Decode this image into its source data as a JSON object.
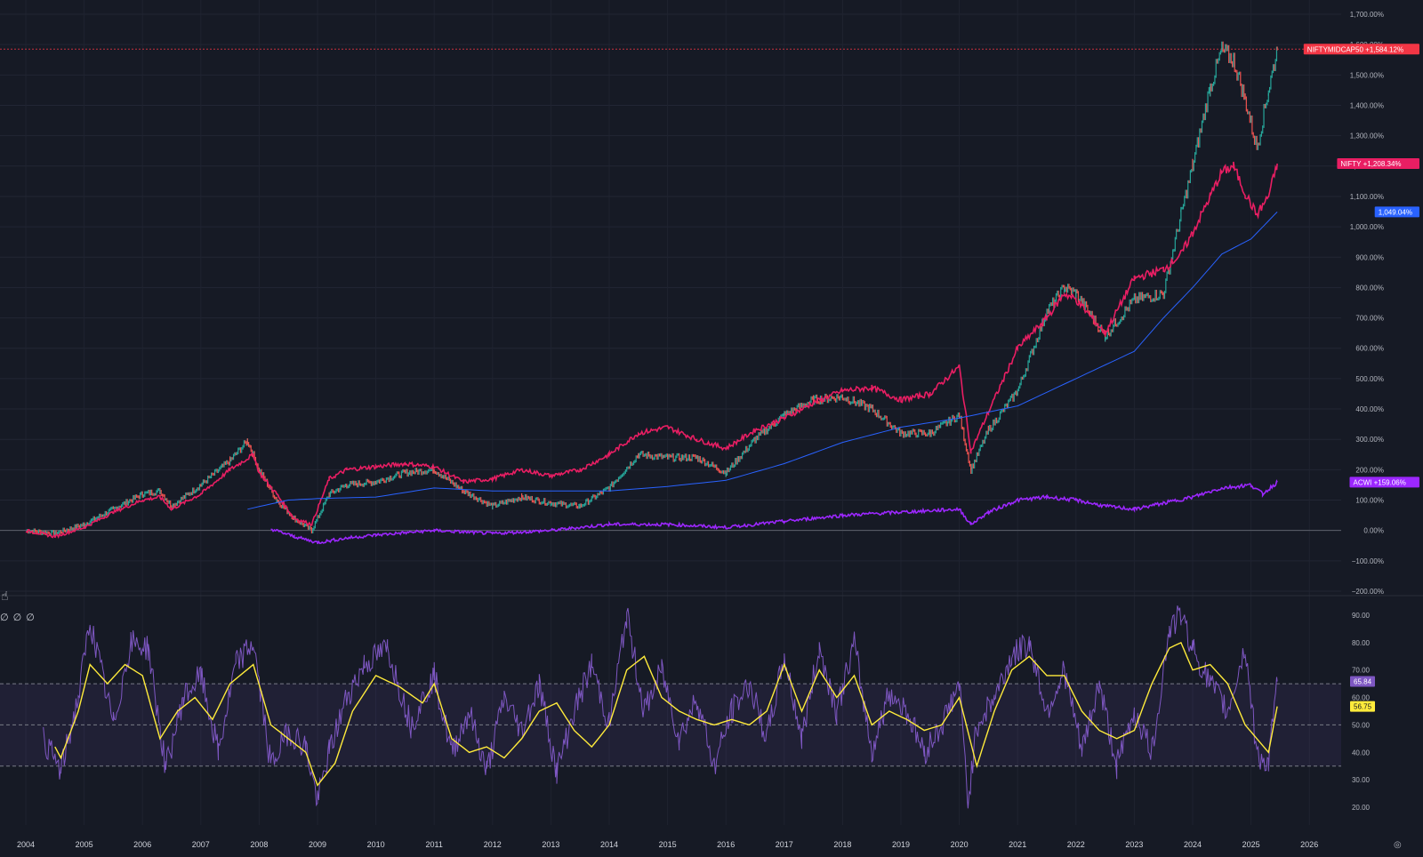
{
  "chart_data": [
    {
      "type": "line",
      "pane": "main",
      "y_unit": "%",
      "ylim": [
        -200,
        1700
      ],
      "y_ticks": [
        "1,700.00%",
        "1,600.00%",
        "1,500.00%",
        "1,400.00%",
        "1,300.00%",
        "1,200.00%",
        "1,100.00%",
        "1,000.00%",
        "900.00%",
        "800.00%",
        "700.00%",
        "600.00%",
        "500.00%",
        "400.00%",
        "300.00%",
        "200.00%",
        "100.00%",
        "0.00%",
        "−100.00%",
        "−200.00%"
      ],
      "y_tick_values": [
        1700,
        1600,
        1500,
        1400,
        1300,
        1200,
        1100,
        1000,
        900,
        800,
        700,
        600,
        500,
        400,
        300,
        200,
        100,
        0,
        -100,
        -200
      ],
      "x_ticks": [
        "2004",
        "2005",
        "2006",
        "2007",
        "2008",
        "2009",
        "2010",
        "2011",
        "2012",
        "2013",
        "2014",
        "2015",
        "2016",
        "2017",
        "2018",
        "2019",
        "2020",
        "2021",
        "2022",
        "2023",
        "2024",
        "2025",
        "2026"
      ],
      "grid": true,
      "series": [
        {
          "name": "NIFTYMIDCAP50",
          "style": "candles",
          "color": "#26a69a",
          "last_label": "+1,584.12%",
          "label_color": "#f23645",
          "x": [
            2004.0,
            2004.5,
            2005.0,
            2005.5,
            2006.0,
            2006.3,
            2006.5,
            2007.0,
            2007.5,
            2007.8,
            2008.0,
            2008.3,
            2008.6,
            2008.9,
            2009.2,
            2009.5,
            2010.0,
            2010.5,
            2011.0,
            2011.5,
            2012.0,
            2012.5,
            2013.0,
            2013.5,
            2014.0,
            2014.5,
            2015.0,
            2015.5,
            2016.0,
            2016.5,
            2017.0,
            2017.5,
            2018.0,
            2018.5,
            2019.0,
            2019.5,
            2020.0,
            2020.2,
            2020.5,
            2021.0,
            2021.5,
            2021.8,
            2022.0,
            2022.5,
            2023.0,
            2023.5,
            2023.8,
            2024.0,
            2024.3,
            2024.5,
            2024.7,
            2024.9,
            2025.1,
            2025.3,
            2025.45
          ],
          "values": [
            0,
            -10,
            20,
            70,
            120,
            130,
            80,
            150,
            230,
            295,
            200,
            100,
            40,
            0,
            120,
            150,
            160,
            190,
            200,
            130,
            80,
            110,
            90,
            80,
            140,
            250,
            240,
            240,
            190,
            300,
            380,
            430,
            440,
            400,
            320,
            320,
            380,
            200,
            330,
            460,
            720,
            800,
            780,
            640,
            760,
            780,
            1040,
            1200,
            1460,
            1580,
            1550,
            1420,
            1260,
            1450,
            1585
          ]
        },
        {
          "name": "NIFTY",
          "style": "line",
          "color": "#e91e63",
          "last_label": "+1,208.34%",
          "label_color": "#e91e63",
          "x": [
            2004.0,
            2004.5,
            2005.0,
            2005.5,
            2006.0,
            2006.3,
            2006.5,
            2007.0,
            2007.5,
            2007.9,
            2008.0,
            2008.3,
            2008.6,
            2008.9,
            2009.2,
            2009.5,
            2010.0,
            2010.5,
            2011.0,
            2011.5,
            2012.0,
            2012.5,
            2013.0,
            2013.5,
            2014.0,
            2014.5,
            2015.0,
            2015.5,
            2016.0,
            2016.5,
            2017.0,
            2017.5,
            2018.0,
            2018.5,
            2019.0,
            2019.5,
            2020.0,
            2020.2,
            2020.5,
            2021.0,
            2021.5,
            2021.8,
            2022.0,
            2022.5,
            2023.0,
            2023.5,
            2023.8,
            2024.0,
            2024.3,
            2024.5,
            2024.7,
            2024.9,
            2025.1,
            2025.3,
            2025.45
          ],
          "values": [
            0,
            -20,
            10,
            60,
            100,
            110,
            70,
            120,
            200,
            250,
            190,
            120,
            40,
            20,
            170,
            200,
            210,
            220,
            210,
            160,
            170,
            200,
            180,
            200,
            250,
            320,
            340,
            300,
            270,
            330,
            370,
            420,
            460,
            470,
            430,
            450,
            540,
            260,
            390,
            600,
            700,
            780,
            760,
            650,
            830,
            860,
            910,
            980,
            1100,
            1180,
            1200,
            1110,
            1040,
            1100,
            1208
          ]
        },
        {
          "name": "",
          "style": "line",
          "color": "#2962ff",
          "last_label": "1,049.04%",
          "label_color": "#2962ff",
          "x": [
            2007.8,
            2008.5,
            2009.0,
            2010.0,
            2011.0,
            2012.0,
            2013.0,
            2014.0,
            2015.0,
            2016.0,
            2017.0,
            2018.0,
            2019.0,
            2020.0,
            2021.0,
            2022.0,
            2023.0,
            2023.5,
            2024.0,
            2024.5,
            2025.0,
            2025.45
          ],
          "values": [
            70,
            100,
            105,
            110,
            140,
            130,
            130,
            130,
            145,
            165,
            220,
            290,
            340,
            370,
            410,
            500,
            590,
            700,
            800,
            910,
            960,
            1049
          ]
        },
        {
          "name": "ACWI",
          "style": "line",
          "color": "#9c27ff",
          "last_label": "+159.06%",
          "label_color": "#9c27ff",
          "x": [
            2008.2,
            2008.6,
            2009.0,
            2009.5,
            2010.0,
            2011.0,
            2012.0,
            2013.0,
            2014.0,
            2015.0,
            2016.0,
            2017.0,
            2018.0,
            2019.0,
            2020.0,
            2020.2,
            2020.5,
            2021.0,
            2021.5,
            2022.0,
            2022.5,
            2023.0,
            2023.5,
            2024.0,
            2024.5,
            2025.0,
            2025.2,
            2025.45
          ],
          "values": [
            5,
            -20,
            -40,
            -25,
            -15,
            0,
            -10,
            0,
            20,
            20,
            10,
            30,
            50,
            60,
            70,
            20,
            60,
            100,
            110,
            100,
            80,
            70,
            90,
            110,
            140,
            150,
            120,
            159
          ]
        }
      ]
    },
    {
      "type": "line",
      "pane": "oscillator",
      "ylim": [
        15,
        95
      ],
      "y_ticks": [
        "90.00",
        "80.00",
        "70.00",
        "60.00",
        "50.00",
        "40.00",
        "30.00",
        "20.00"
      ],
      "y_tick_values": [
        90,
        80,
        70,
        60,
        50,
        40,
        30,
        20
      ],
      "bands": [
        65,
        50,
        35
      ],
      "series": [
        {
          "name": "",
          "color": "#7e57c2",
          "last_label": "65.84",
          "x": [
            2004.3,
            2004.6,
            2004.9,
            2005.1,
            2005.5,
            2005.8,
            2006.1,
            2006.4,
            2006.7,
            2007.0,
            2007.3,
            2007.6,
            2007.9,
            2008.2,
            2008.5,
            2008.8,
            2009.0,
            2009.2,
            2009.5,
            2009.8,
            2010.2,
            2010.6,
            2011.0,
            2011.3,
            2011.6,
            2011.9,
            2012.2,
            2012.5,
            2012.8,
            2013.1,
            2013.4,
            2013.7,
            2014.0,
            2014.3,
            2014.6,
            2014.9,
            2015.2,
            2015.5,
            2015.8,
            2016.1,
            2016.4,
            2016.7,
            2017.0,
            2017.3,
            2017.6,
            2017.9,
            2018.2,
            2018.5,
            2018.8,
            2019.1,
            2019.4,
            2019.7,
            2020.0,
            2020.15,
            2020.3,
            2020.6,
            2020.9,
            2021.2,
            2021.5,
            2021.8,
            2022.1,
            2022.4,
            2022.7,
            2023.0,
            2023.3,
            2023.6,
            2023.8,
            2024.0,
            2024.3,
            2024.6,
            2024.9,
            2025.1,
            2025.3,
            2025.45
          ],
          "values": [
            45,
            33,
            60,
            88,
            50,
            80,
            78,
            34,
            60,
            68,
            40,
            72,
            80,
            35,
            48,
            42,
            22,
            40,
            60,
            72,
            78,
            50,
            68,
            40,
            55,
            33,
            60,
            48,
            65,
            33,
            55,
            72,
            50,
            90,
            55,
            70,
            45,
            60,
            35,
            55,
            65,
            45,
            75,
            45,
            78,
            55,
            80,
            40,
            62,
            55,
            40,
            50,
            65,
            22,
            50,
            60,
            75,
            80,
            55,
            70,
            40,
            65,
            35,
            55,
            40,
            85,
            90,
            78,
            65,
            55,
            78,
            40,
            35,
            65.84
          ]
        },
        {
          "name": "",
          "color": "#ffeb3b",
          "last_label": "56.75",
          "x": [
            2004.5,
            2004.6,
            2004.9,
            2005.1,
            2005.4,
            2005.7,
            2006.0,
            2006.3,
            2006.6,
            2006.9,
            2007.2,
            2007.5,
            2007.9,
            2008.2,
            2008.5,
            2008.8,
            2009.0,
            2009.3,
            2009.6,
            2010.0,
            2010.4,
            2010.8,
            2011.0,
            2011.3,
            2011.6,
            2011.9,
            2012.2,
            2012.5,
            2012.8,
            2013.1,
            2013.4,
            2013.7,
            2014.0,
            2014.3,
            2014.6,
            2014.9,
            2015.2,
            2015.5,
            2015.8,
            2016.1,
            2016.4,
            2016.7,
            2017.0,
            2017.3,
            2017.6,
            2017.9,
            2018.2,
            2018.5,
            2018.8,
            2019.1,
            2019.4,
            2019.7,
            2020.0,
            2020.3,
            2020.6,
            2020.9,
            2021.2,
            2021.5,
            2021.8,
            2022.1,
            2022.4,
            2022.7,
            2023.0,
            2023.3,
            2023.6,
            2023.8,
            2024.0,
            2024.3,
            2024.6,
            2024.9,
            2025.1,
            2025.3,
            2025.45
          ],
          "values": [
            42,
            38,
            55,
            72,
            65,
            72,
            68,
            45,
            55,
            60,
            52,
            65,
            72,
            50,
            45,
            40,
            28,
            36,
            55,
            68,
            64,
            58,
            65,
            45,
            40,
            42,
            38,
            45,
            55,
            58,
            48,
            42,
            50,
            70,
            75,
            60,
            55,
            52,
            50,
            52,
            50,
            55,
            72,
            55,
            70,
            60,
            68,
            50,
            55,
            52,
            48,
            50,
            60,
            35,
            55,
            70,
            75,
            68,
            68,
            55,
            48,
            45,
            48,
            65,
            78,
            80,
            70,
            72,
            65,
            50,
            45,
            40,
            56.75
          ]
        }
      ]
    }
  ],
  "icons": {
    "pane_icon": "hand-point-icon",
    "legend_glyphs": [
      "∅",
      "∅",
      "∅"
    ],
    "settings_glyph": "◎"
  }
}
